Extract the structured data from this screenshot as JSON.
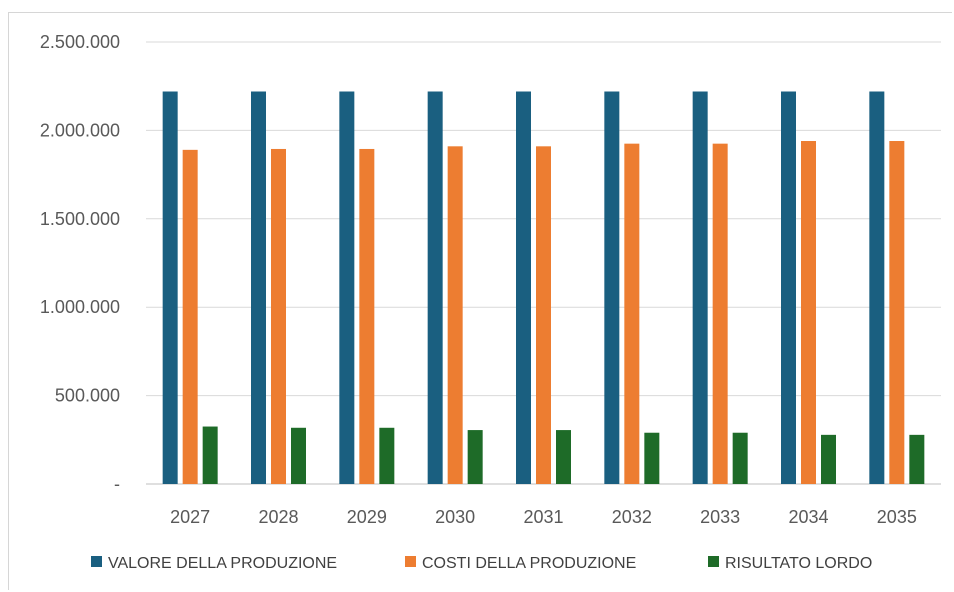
{
  "chart_data": {
    "type": "bar",
    "categories": [
      "2027",
      "2028",
      "2029",
      "2030",
      "2031",
      "2032",
      "2033",
      "2034",
      "2035"
    ],
    "series": [
      {
        "name": "VALORE DELLA PRODUZIONE",
        "color": "#1a5f80",
        "values": [
          2220000,
          2220000,
          2220000,
          2220000,
          2220000,
          2220000,
          2220000,
          2220000,
          2220000
        ]
      },
      {
        "name": "COSTI DELLA PRODUZIONE",
        "color": "#ed7d31",
        "values": [
          1890000,
          1895000,
          1895000,
          1910000,
          1910000,
          1925000,
          1925000,
          1940000,
          1940000
        ]
      },
      {
        "name": "RISULTATO LORDO",
        "color": "#1e6b28",
        "values": [
          325000,
          318000,
          318000,
          305000,
          305000,
          290000,
          290000,
          278000,
          278000
        ]
      }
    ],
    "y_ticks": [
      0,
      500000,
      1000000,
      1500000,
      2000000,
      2500000
    ],
    "y_tick_labels": [
      "-",
      "500.000",
      "1.000.000",
      "1.500.000",
      "2.000.000",
      "2.500.000"
    ],
    "ylim": [
      0,
      2500000
    ],
    "grid": true,
    "legend_position": "bottom",
    "title": "",
    "xlabel": "",
    "ylabel": ""
  }
}
